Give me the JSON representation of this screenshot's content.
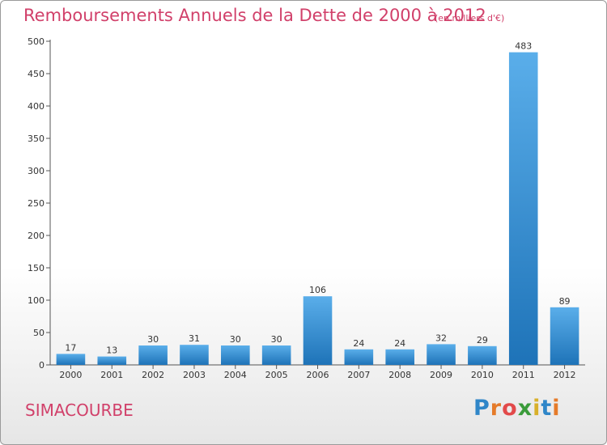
{
  "header": {
    "title": "Remboursements Annuels de la Dette de 2000 à 2012",
    "subtitle": "(en milliers d'€)"
  },
  "footer": {
    "commune": "SIMACOURBE",
    "logo_text": [
      "P",
      "r",
      "o",
      "x",
      "i",
      "t",
      "i"
    ]
  },
  "colors": {
    "title": "#d1406a",
    "bar_top": "#5aaeea",
    "bar_bottom": "#1e73b8",
    "logo": [
      "#2f86c8",
      "#e57b2a",
      "#e24a4a",
      "#3a9b3a",
      "#d8b02a"
    ]
  },
  "chart_data": {
    "type": "bar",
    "categories": [
      "2000",
      "2001",
      "2002",
      "2003",
      "2004",
      "2005",
      "2006",
      "2007",
      "2008",
      "2009",
      "2010",
      "2011",
      "2012"
    ],
    "values": [
      17,
      13,
      30,
      31,
      30,
      30,
      106,
      24,
      24,
      32,
      29,
      483,
      89
    ],
    "title": "Remboursements Annuels de la Dette de 2000 à 2012",
    "subtitle": "(en milliers d'€)",
    "ylim": [
      0,
      500
    ],
    "yticks": [
      0,
      50,
      100,
      150,
      200,
      250,
      300,
      350,
      400,
      450,
      500
    ],
    "grid": false,
    "data_labels": true
  }
}
